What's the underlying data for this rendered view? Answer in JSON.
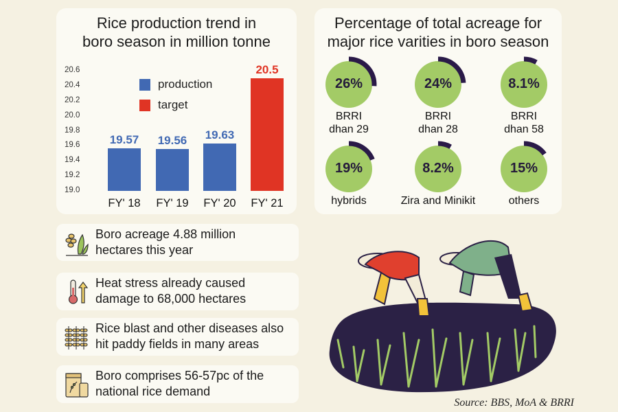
{
  "colors": {
    "production": "#4169b3",
    "target": "#e03424",
    "ring_fill": "#a3cb66",
    "ring_arc": "#2a1a48",
    "card": "#fbfaf3",
    "background": "#f5f1e2"
  },
  "chart_data": [
    {
      "type": "bar",
      "title": "Rice production trend in boro season in million tonne",
      "title_lines": [
        "Rice production trend in",
        "boro season in million tonne"
      ],
      "categories": [
        "FY' 18",
        "FY' 19",
        "FY' 20",
        "FY' 21"
      ],
      "series": [
        {
          "name": "production",
          "values": [
            19.57,
            19.56,
            19.63,
            null
          ]
        },
        {
          "name": "target",
          "values": [
            null,
            null,
            null,
            20.5
          ]
        }
      ],
      "data_labels": [
        "19.57",
        "19.56",
        "19.63",
        "20.5"
      ],
      "ylim": [
        19.0,
        20.6
      ],
      "yticks": [
        "19.0",
        "19.2",
        "19.4",
        "19.6",
        "19.8",
        "20.0",
        "20.2",
        "20.4",
        "20.6"
      ],
      "grid": false,
      "legend": "top-center"
    },
    {
      "type": "pie",
      "title": "Percentage of total acreage for major rice varities in boro season",
      "title_lines": [
        "Percentage of total acreage for",
        "major rice varities in boro season"
      ],
      "items": [
        {
          "label_lines": [
            "BRRI",
            "dhan 29"
          ],
          "value": 26,
          "text": "26%"
        },
        {
          "label_lines": [
            "BRRI",
            "dhan 28"
          ],
          "value": 24,
          "text": "24%"
        },
        {
          "label_lines": [
            "BRRI",
            "dhan 58"
          ],
          "value": 8.1,
          "text": "8.1%"
        },
        {
          "label_lines": [
            "hybrids"
          ],
          "value": 19,
          "text": "19%"
        },
        {
          "label_lines": [
            "Zira and Minikit"
          ],
          "value": 8.2,
          "text": "8.2%"
        },
        {
          "label_lines": [
            "others"
          ],
          "value": 15,
          "text": "15%"
        }
      ]
    }
  ],
  "facts": [
    {
      "icon": "rice-plant-icon",
      "lines": [
        "Boro acreage 4.88 million",
        "hectares this year"
      ]
    },
    {
      "icon": "thermometer-icon",
      "lines": [
        "Heat stress already caused",
        "damage to 68,000 hectares"
      ]
    },
    {
      "icon": "wheat-stalks-icon",
      "lines": [
        "Rice blast and other diseases also",
        "hit paddy fields in many areas"
      ]
    },
    {
      "icon": "rice-sack-icon",
      "lines": [
        "Boro comprises 56-57pc of the",
        "national rice demand"
      ]
    }
  ],
  "source": "Source: BBS, MoA & BRRI"
}
